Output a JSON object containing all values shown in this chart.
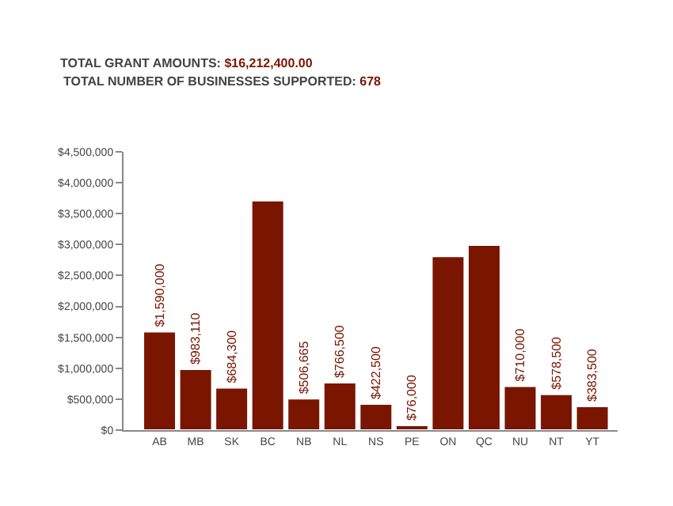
{
  "chart_data": {
    "type": "bar",
    "title": "TOTAL GRANT AMOUNTS: $16,212,400.00",
    "subtitle": "TOTAL NUMBER OF BUSINESSES SUPPORTED: 678",
    "categories": [
      "AB",
      "MB",
      "SK",
      "BC",
      "NB",
      "NL",
      "NS",
      "PE",
      "ON",
      "QC",
      "NU",
      "NT",
      "YT"
    ],
    "values": [
      1590000,
      983110,
      684300,
      3710000,
      506665,
      766500,
      422500,
      76000,
      2810000,
      2990000,
      710000,
      578500,
      383500
    ],
    "value_labels": [
      "$1,590,000",
      "$983,110",
      "$684,300",
      null,
      "$506,665",
      "$766,500",
      "$422,500",
      "$76,000",
      null,
      null,
      "$710,000",
      "$578,500",
      "$383,500"
    ],
    "color": "#7a1500",
    "ylim": [
      0,
      4500000
    ],
    "yticks": [
      {
        "value": 0,
        "label": "$0"
      },
      {
        "value": 500000,
        "label": "$500,000"
      },
      {
        "value": 1000000,
        "label": "$1,000,000"
      },
      {
        "value": 1500000,
        "label": "$1,500,000"
      },
      {
        "value": 2000000,
        "label": "$2,000,000"
      },
      {
        "value": 2500000,
        "label": "$2,500,000"
      },
      {
        "value": 3000000,
        "label": "$3,000,000"
      },
      {
        "value": 3500000,
        "label": "$3,500,000"
      },
      {
        "value": 4000000,
        "label": "$4,000,000"
      },
      {
        "value": 4500000,
        "label": "$4,500,000"
      }
    ],
    "legend": false
  }
}
